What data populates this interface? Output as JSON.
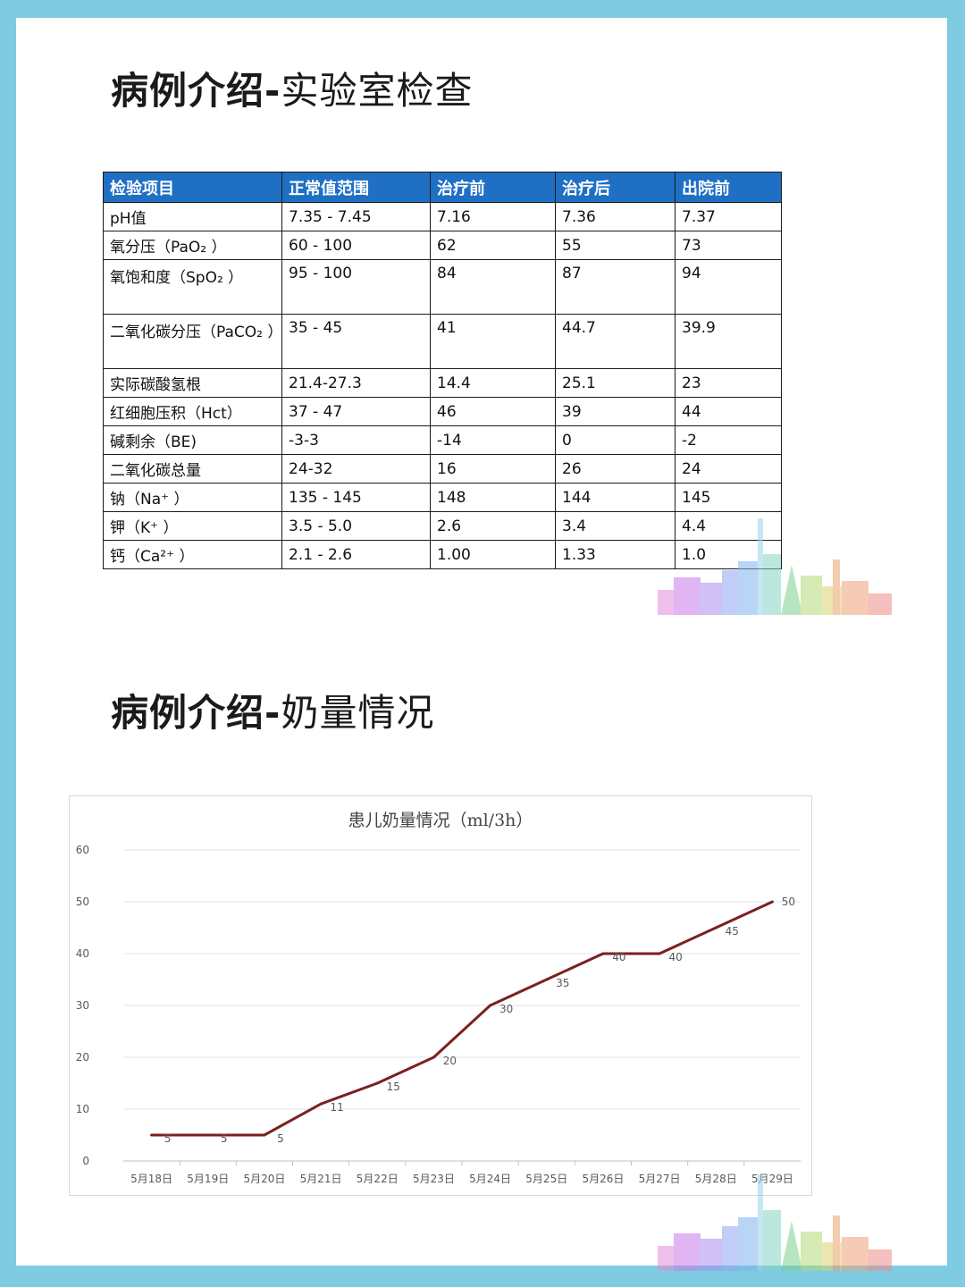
{
  "headings": {
    "lab_bold": "病例介绍-",
    "lab_thin": "实验室检查",
    "milk_bold": "病例介绍-",
    "milk_thin": "奶量情况"
  },
  "lab_table": {
    "header_color": "#1f6fc4",
    "columns": [
      "检验项目",
      "正常值范围",
      "治疗前",
      "治疗后",
      "出院前"
    ],
    "rows": [
      [
        "pH值",
        "7.35 - 7.45",
        "7.16",
        "7.36",
        "7.37"
      ],
      [
        "氧分压（PaO₂ ）",
        "60 - 100",
        "62",
        "55",
        "73"
      ],
      [
        "氧饱和度（SpO₂ ）",
        "95 - 100",
        "84",
        "87",
        "94"
      ],
      [
        "二氧化碳分压（PaCO₂ ）",
        "35 - 45",
        "41",
        "44.7",
        "39.9"
      ],
      [
        "实际碳酸氢根",
        "21.4-27.3",
        "14.4",
        "25.1",
        "23"
      ],
      [
        "红细胞压积（Hct）",
        "37 - 47",
        "46",
        "39",
        "44"
      ],
      [
        "碱剩余（BE)",
        "-3-3",
        "-14",
        "0",
        "-2"
      ],
      [
        "二氧化碳总量",
        "24-32",
        "16",
        "26",
        "24"
      ],
      [
        "钠（Na⁺ ）",
        "135 - 145",
        "148",
        "144",
        "145"
      ],
      [
        "钾（K⁺ ）",
        "3.5 - 5.0",
        "2.6",
        "3.4",
        "4.4"
      ],
      [
        "钙（Ca²⁺ ）",
        "2.1 - 2.6",
        "1.00",
        "1.33",
        "1.0"
      ]
    ]
  },
  "chart_data": {
    "type": "line",
    "title": "患儿奶量情况（ml/3h）",
    "categories": [
      "5月18日",
      "5月19日",
      "5月20日",
      "5月21日",
      "5月22日",
      "5月23日",
      "5月24日",
      "5月25日",
      "5月26日",
      "5月27日",
      "5月28日",
      "5月29日"
    ],
    "series": [
      {
        "values": [
          5,
          5,
          5,
          11,
          15,
          20,
          30,
          35,
          40,
          40,
          45,
          50
        ],
        "color": "#7b2020"
      }
    ],
    "ylim": [
      0,
      60
    ],
    "yticks": [
      0,
      10,
      20,
      30,
      40,
      50,
      60
    ],
    "grid": true,
    "data_labels": true,
    "legend": "none"
  }
}
